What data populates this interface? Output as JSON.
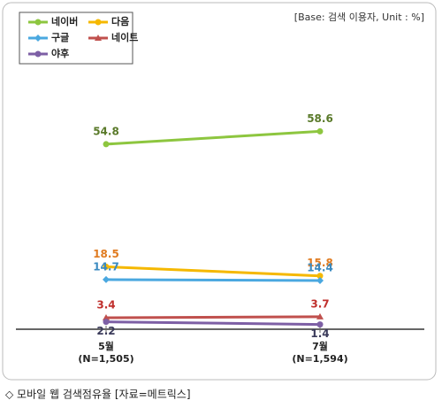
{
  "chart_data": {
    "type": "line",
    "note": "[Base: 검색 이용자, Unit : %]",
    "caption": "◇ 모바일 웹 검색점유율 [자료=메트릭스]",
    "categories": [
      "5월",
      "7월"
    ],
    "category_notes": [
      "(N=1,505)",
      "(N=1,594)"
    ],
    "series": [
      {
        "name": "네이버",
        "color": "#8dc63f",
        "marker": "circle",
        "values": [
          54.8,
          58.6
        ]
      },
      {
        "name": "다음",
        "color": "#f5b800",
        "marker": "circle",
        "values": [
          18.5,
          15.8
        ]
      },
      {
        "name": "구글",
        "color": "#4aa8e0",
        "marker": "diamond",
        "values": [
          14.7,
          14.4
        ]
      },
      {
        "name": "네이트",
        "color": "#c0504d",
        "marker": "triangle",
        "values": [
          3.4,
          3.7
        ]
      },
      {
        "name": "야후",
        "color": "#7d5fa5",
        "marker": "circle",
        "values": [
          2.2,
          1.4
        ]
      }
    ],
    "label_colors": [
      "#5a7a2a",
      "#e07b20",
      "#3a8ac0",
      "#c0302d",
      "#3a3a5a"
    ],
    "ylim": [
      0,
      65
    ]
  }
}
